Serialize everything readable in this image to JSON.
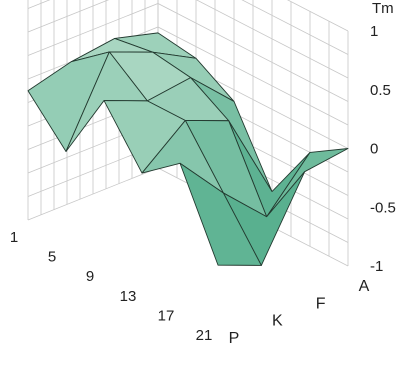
{
  "chart_data": {
    "type": "surface3d",
    "title": "",
    "z_axis": {
      "label": "Tm",
      "ticks": [
        "1",
        "0.5",
        "0",
        "-0.5",
        "-1"
      ],
      "range": [
        -1,
        1
      ]
    },
    "x_axis": {
      "label": "",
      "ticks": [
        "1",
        "5",
        "9",
        "13",
        "17",
        "21"
      ],
      "range": [
        1,
        21
      ]
    },
    "y_axis": {
      "label": "",
      "ticks": [
        "P",
        "K",
        "F",
        "A"
      ],
      "range": [
        0,
        3
      ]
    },
    "x": [
      1,
      5,
      9,
      13,
      17,
      21
    ],
    "y": [
      "P",
      "K",
      "F",
      "A"
    ],
    "z": [
      [
        0.1,
        0.2,
        0.25,
        0.15
      ],
      [
        -0.25,
        0.45,
        0.3,
        0.1
      ],
      [
        0.35,
        0.2,
        0.25,
        -0.1
      ],
      [
        -0.1,
        0.2,
        0.05,
        -0.7
      ],
      [
        0.15,
        -0.25,
        -0.6,
        -0.2
      ],
      [
        -0.55,
        -0.7,
        -0.05,
        0.0
      ]
    ],
    "colors": {
      "surface_high": "#d6ecde",
      "surface_low": "#2e9c74",
      "edge": "#233a30",
      "grid": "#c7c7c7"
    },
    "grid": true
  }
}
